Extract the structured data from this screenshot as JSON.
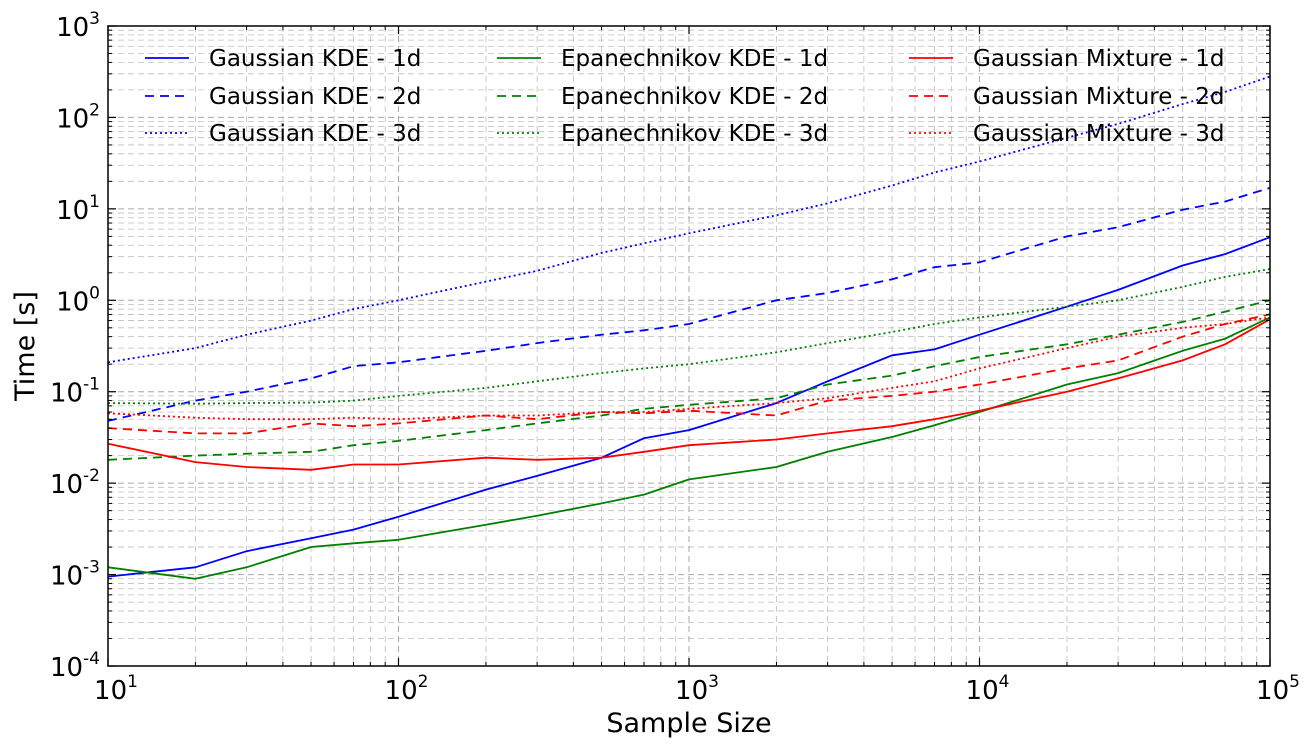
{
  "chart_data": {
    "type": "line",
    "title": "",
    "xlabel": "Sample Size",
    "ylabel": "Time [s]",
    "xscale": "log",
    "yscale": "log",
    "xlim": [
      10,
      100000
    ],
    "ylim": [
      0.0001,
      1000
    ],
    "grid": true,
    "legend_position": "top",
    "legend_columns": 3,
    "x_ticks": [
      {
        "value": 10,
        "base": "10",
        "exp": "1"
      },
      {
        "value": 100,
        "base": "10",
        "exp": "2"
      },
      {
        "value": 1000,
        "base": "10",
        "exp": "3"
      },
      {
        "value": 10000,
        "base": "10",
        "exp": "4"
      },
      {
        "value": 100000,
        "base": "10",
        "exp": "5"
      }
    ],
    "y_ticks": [
      {
        "value": 0.0001,
        "base": "10",
        "exp": "-4"
      },
      {
        "value": 0.001,
        "base": "10",
        "exp": "-3"
      },
      {
        "value": 0.01,
        "base": "10",
        "exp": "-2"
      },
      {
        "value": 0.1,
        "base": "10",
        "exp": "-1"
      },
      {
        "value": 1,
        "base": "10",
        "exp": "0"
      },
      {
        "value": 10,
        "base": "10",
        "exp": "1"
      },
      {
        "value": 100,
        "base": "10",
        "exp": "2"
      },
      {
        "value": 1000,
        "base": "10",
        "exp": "3"
      }
    ],
    "x": [
      10,
      20,
      30,
      50,
      70,
      100,
      200,
      300,
      500,
      700,
      1000,
      2000,
      3000,
      5000,
      7000,
      10000,
      20000,
      30000,
      50000,
      70000,
      100000
    ],
    "series": [
      {
        "name": "Gaussian KDE - 1d",
        "color": "#0000ff",
        "style": "solid",
        "values": [
          0.00095,
          0.0012,
          0.0018,
          0.0025,
          0.0031,
          0.0043,
          0.0085,
          0.012,
          0.019,
          0.031,
          0.038,
          0.075,
          0.13,
          0.25,
          0.29,
          0.42,
          0.85,
          1.3,
          2.4,
          3.2,
          4.9
        ]
      },
      {
        "name": "Gaussian KDE - 2d",
        "color": "#0000ff",
        "style": "dashed",
        "values": [
          0.048,
          0.08,
          0.1,
          0.14,
          0.19,
          0.21,
          0.28,
          0.34,
          0.42,
          0.47,
          0.55,
          1.0,
          1.2,
          1.7,
          2.3,
          2.6,
          5.0,
          6.3,
          9.8,
          12,
          17
        ]
      },
      {
        "name": "Gaussian KDE - 3d",
        "color": "#0000ff",
        "style": "dotted",
        "values": [
          0.21,
          0.3,
          0.42,
          0.6,
          0.8,
          1.0,
          1.6,
          2.1,
          3.3,
          4.2,
          5.4,
          8.5,
          11.5,
          18,
          25,
          33,
          60,
          85,
          140,
          190,
          280
        ]
      },
      {
        "name": "Epanechnikov KDE - 1d",
        "color": "#008000",
        "style": "solid",
        "values": [
          0.0012,
          0.0009,
          0.0012,
          0.002,
          0.0022,
          0.0024,
          0.0035,
          0.0044,
          0.006,
          0.0075,
          0.011,
          0.015,
          0.022,
          0.032,
          0.043,
          0.06,
          0.12,
          0.16,
          0.28,
          0.38,
          0.65
        ]
      },
      {
        "name": "Epanechnikov KDE - 2d",
        "color": "#008000",
        "style": "dashed",
        "values": [
          0.018,
          0.02,
          0.021,
          0.022,
          0.026,
          0.029,
          0.038,
          0.045,
          0.055,
          0.065,
          0.072,
          0.085,
          0.12,
          0.15,
          0.19,
          0.24,
          0.33,
          0.42,
          0.58,
          0.75,
          1.0
        ]
      },
      {
        "name": "Epanechnikov KDE - 3d",
        "color": "#008000",
        "style": "dotted",
        "values": [
          0.075,
          0.074,
          0.075,
          0.076,
          0.08,
          0.09,
          0.11,
          0.13,
          0.16,
          0.18,
          0.2,
          0.27,
          0.34,
          0.45,
          0.55,
          0.65,
          0.85,
          1.0,
          1.4,
          1.8,
          2.2
        ]
      },
      {
        "name": "Gaussian Mixture - 1d",
        "color": "#ff0000",
        "style": "solid",
        "values": [
          0.027,
          0.017,
          0.015,
          0.014,
          0.016,
          0.016,
          0.019,
          0.018,
          0.019,
          0.022,
          0.026,
          0.03,
          0.035,
          0.042,
          0.05,
          0.062,
          0.1,
          0.14,
          0.22,
          0.33,
          0.62
        ]
      },
      {
        "name": "Gaussian Mixture - 2d",
        "color": "#ff0000",
        "style": "dashed",
        "values": [
          0.04,
          0.035,
          0.035,
          0.045,
          0.042,
          0.045,
          0.055,
          0.05,
          0.06,
          0.058,
          0.062,
          0.055,
          0.08,
          0.09,
          0.1,
          0.12,
          0.18,
          0.22,
          0.4,
          0.55,
          0.7
        ]
      },
      {
        "name": "Gaussian Mixture - 3d",
        "color": "#ff0000",
        "style": "dotted",
        "values": [
          0.058,
          0.052,
          0.05,
          0.05,
          0.052,
          0.05,
          0.055,
          0.055,
          0.06,
          0.06,
          0.065,
          0.075,
          0.085,
          0.11,
          0.13,
          0.18,
          0.3,
          0.4,
          0.5,
          0.55,
          0.65
        ]
      }
    ]
  }
}
